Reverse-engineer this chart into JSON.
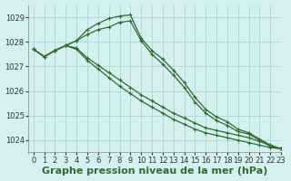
{
  "title": "Graphe pression niveau de la mer (hPa)",
  "background_color": "#d4f0f0",
  "grid_color": "#aed8d8",
  "line_color": "#2d6e2d",
  "marker": "+",
  "xlim": [
    -0.5,
    23
  ],
  "ylim": [
    1023.5,
    1029.5
  ],
  "yticks": [
    1024,
    1025,
    1026,
    1027,
    1028,
    1029
  ],
  "xticks": [
    0,
    1,
    2,
    3,
    4,
    5,
    6,
    7,
    8,
    9,
    10,
    11,
    12,
    13,
    14,
    15,
    16,
    17,
    18,
    19,
    20,
    21,
    22,
    23
  ],
  "series": [
    [
      1027.7,
      1027.4,
      1027.65,
      1027.85,
      1028.05,
      1028.5,
      1028.75,
      1028.95,
      1029.05,
      1029.1,
      1028.15,
      1027.65,
      1027.3,
      1026.85,
      1026.35,
      1025.75,
      1025.25,
      1024.95,
      1024.75,
      1024.45,
      1024.3,
      1024.05,
      1023.8,
      1023.65
    ],
    [
      1027.7,
      1027.4,
      1027.65,
      1027.85,
      1028.05,
      1028.3,
      1028.5,
      1028.6,
      1028.8,
      1028.85,
      1028.05,
      1027.5,
      1027.1,
      1026.65,
      1026.15,
      1025.55,
      1025.1,
      1024.8,
      1024.6,
      1024.35,
      1024.25,
      1024.0,
      1023.75,
      1023.65
    ],
    [
      1027.7,
      1027.4,
      1027.65,
      1027.85,
      1027.7,
      1027.25,
      1026.9,
      1026.55,
      1026.2,
      1025.9,
      1025.6,
      1025.35,
      1025.1,
      1024.85,
      1024.65,
      1024.45,
      1024.3,
      1024.2,
      1024.1,
      1024.0,
      1023.9,
      1023.8,
      1023.7,
      1023.65
    ],
    [
      1027.7,
      1027.4,
      1027.65,
      1027.85,
      1027.75,
      1027.35,
      1027.05,
      1026.75,
      1026.45,
      1026.15,
      1025.85,
      1025.6,
      1025.35,
      1025.1,
      1024.9,
      1024.7,
      1024.5,
      1024.4,
      1024.3,
      1024.2,
      1024.1,
      1023.95,
      1023.8,
      1023.65
    ]
  ],
  "xlabel_fontsize": 8,
  "tick_fontsize": 6,
  "title_fontsize": 8,
  "linewidth": 0.9,
  "markersize": 2.5,
  "markeredgewidth": 0.8
}
